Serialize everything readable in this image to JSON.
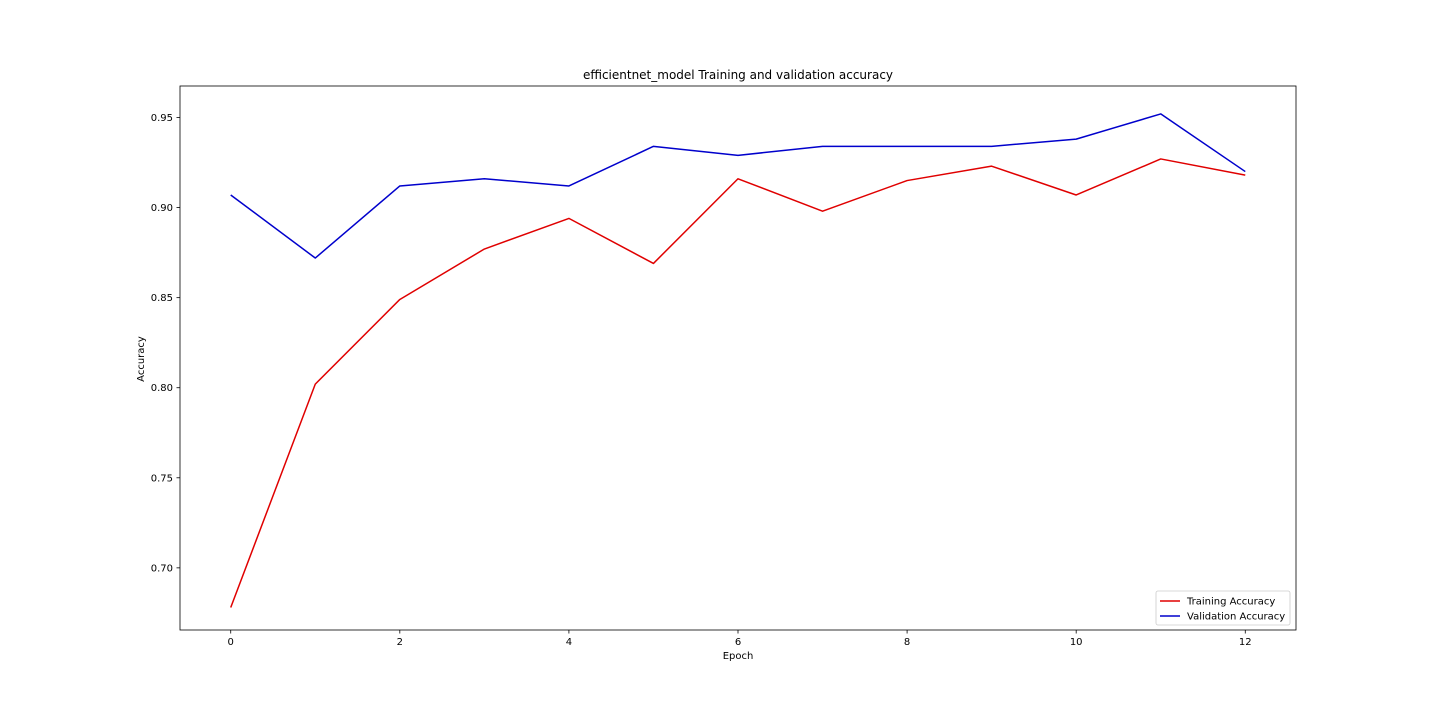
{
  "chart_data": {
    "type": "line",
    "title": "efficientnet_model Training and validation accuracy",
    "xlabel": "Epoch",
    "ylabel": "Accuracy",
    "x": [
      0,
      1,
      2,
      3,
      4,
      5,
      6,
      7,
      8,
      9,
      10,
      11,
      12
    ],
    "xlim": [
      -0.6,
      12.6
    ],
    "ylim": [
      0.6655,
      0.9675
    ],
    "xticks": [
      0,
      2,
      4,
      6,
      8,
      10,
      12
    ],
    "xtick_labels": [
      "0",
      "2",
      "4",
      "6",
      "8",
      "10",
      "12"
    ],
    "yticks": [
      0.7,
      0.75,
      0.8,
      0.85,
      0.9,
      0.95
    ],
    "ytick_labels": [
      "0.70",
      "0.75",
      "0.80",
      "0.85",
      "0.90",
      "0.95"
    ],
    "grid": false,
    "legend_position": "lower right",
    "series": [
      {
        "name": "Training Accuracy",
        "color": "#e00000",
        "values": [
          0.678,
          0.802,
          0.849,
          0.877,
          0.894,
          0.869,
          0.916,
          0.898,
          0.915,
          0.923,
          0.907,
          0.927,
          0.918
        ]
      },
      {
        "name": "Validation Accuracy",
        "color": "#0000cc",
        "values": [
          0.907,
          0.872,
          0.912,
          0.916,
          0.912,
          0.934,
          0.929,
          0.934,
          0.934,
          0.934,
          0.938,
          0.952,
          0.92
        ]
      }
    ]
  }
}
